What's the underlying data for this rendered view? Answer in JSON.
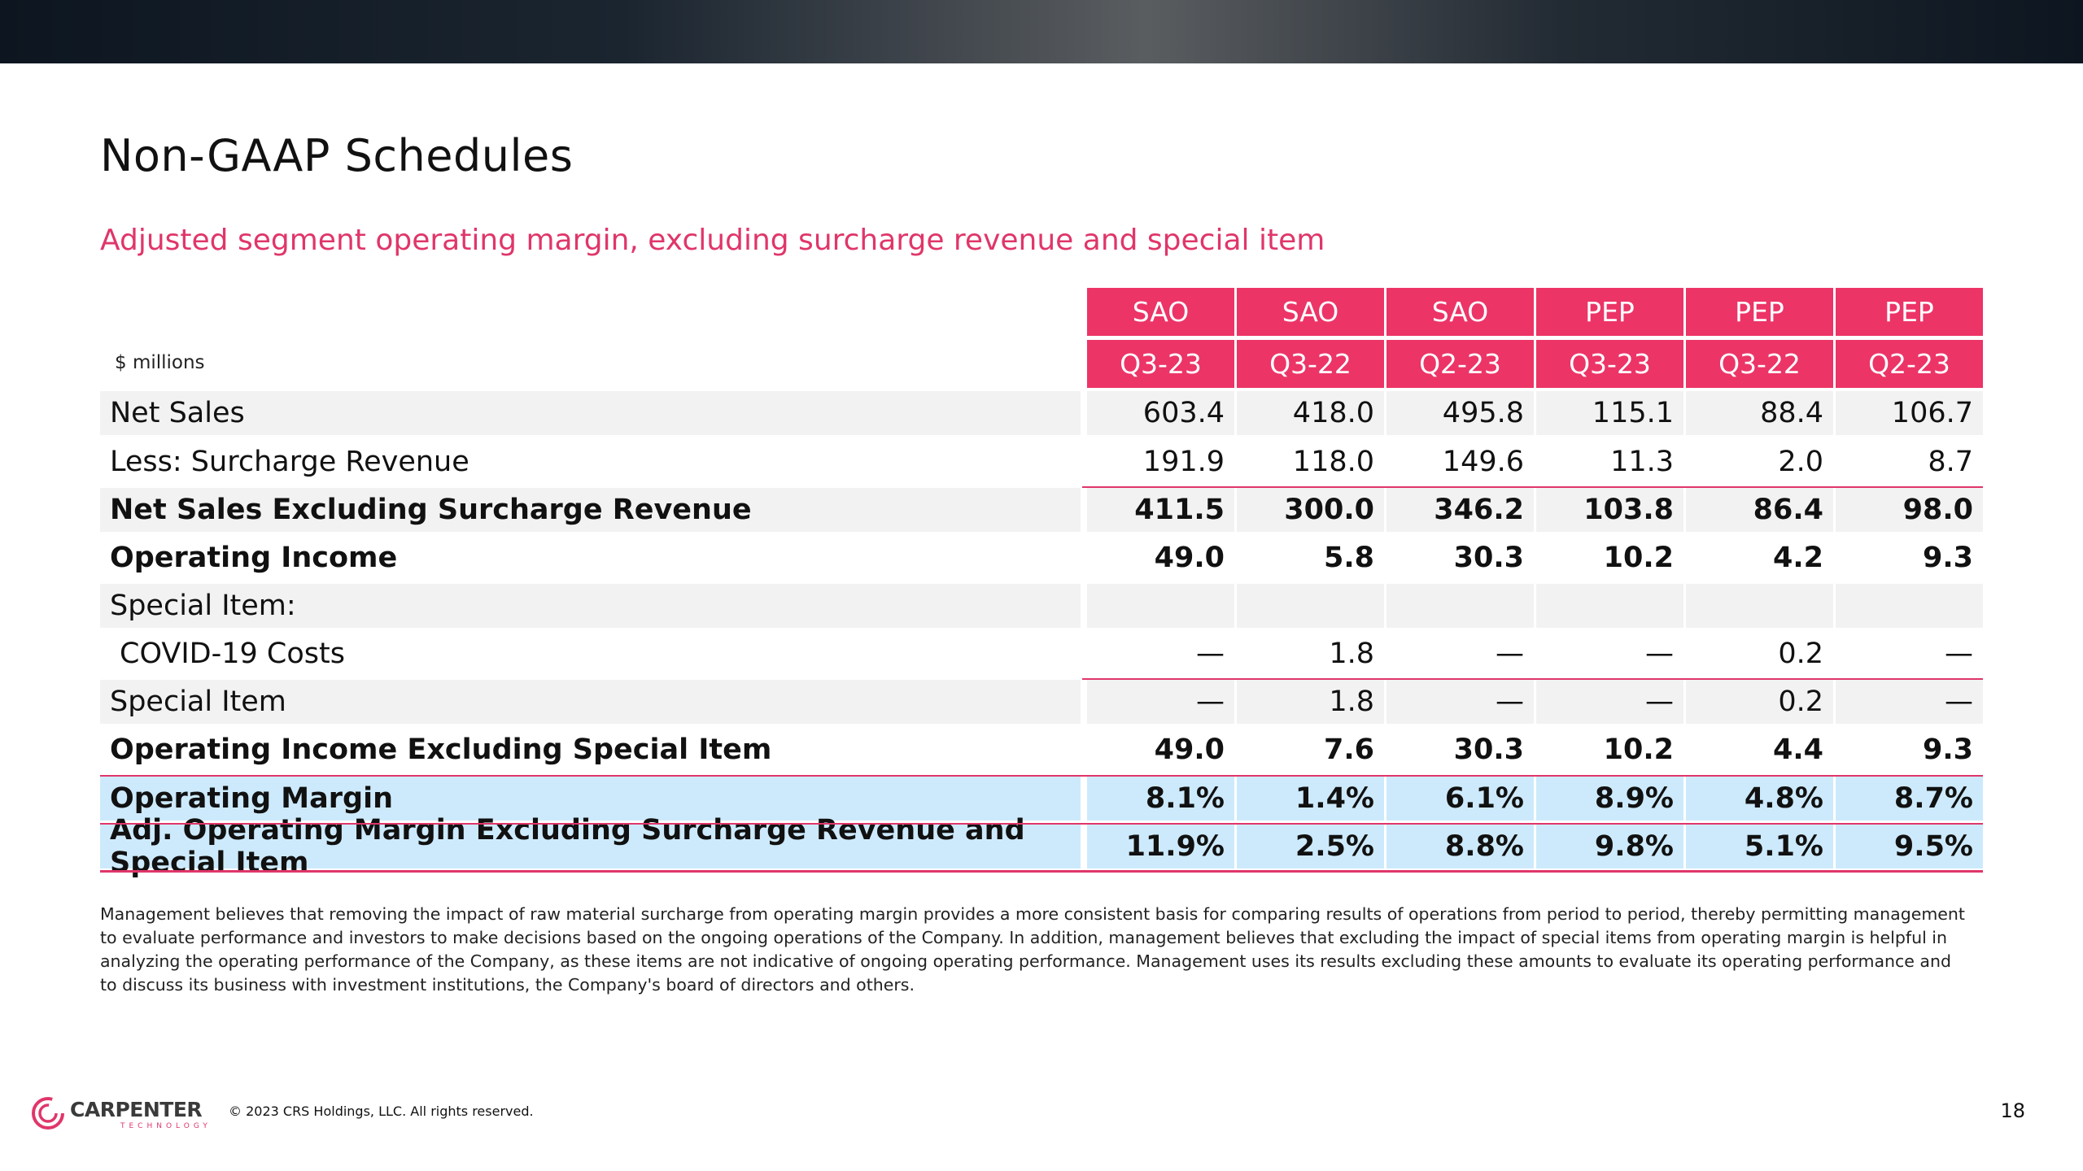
{
  "title": "Non-GAAP Schedules",
  "subtitle": "Adjusted segment operating margin, excluding surcharge revenue and special item",
  "units_label": "$ millions",
  "columns": [
    {
      "segment": "SAO",
      "period": "Q3-23"
    },
    {
      "segment": "SAO",
      "period": "Q3-22"
    },
    {
      "segment": "SAO",
      "period": "Q2-23"
    },
    {
      "segment": "PEP",
      "period": "Q3-23"
    },
    {
      "segment": "PEP",
      "period": "Q3-22"
    },
    {
      "segment": "PEP",
      "period": "Q2-23"
    }
  ],
  "rows": [
    {
      "label": "Net Sales",
      "values": [
        "603.4",
        "418.0",
        "495.8",
        "115.1",
        "88.4",
        "106.7"
      ]
    },
    {
      "label": "Less: Surcharge Revenue",
      "values": [
        "191.9",
        "118.0",
        "149.6",
        "11.3",
        "2.0",
        "8.7"
      ]
    },
    {
      "label": "Net Sales Excluding Surcharge Revenue",
      "values": [
        "411.5",
        "300.0",
        "346.2",
        "103.8",
        "86.4",
        "98.0"
      ]
    },
    {
      "label": "Operating Income",
      "values": [
        "49.0",
        "5.8",
        "30.3",
        "10.2",
        "4.2",
        "9.3"
      ]
    },
    {
      "label": "Special Item:",
      "values": [
        "",
        "",
        "",
        "",
        "",
        ""
      ]
    },
    {
      "label": "COVID-19 Costs",
      "values": [
        "—",
        "1.8",
        "—",
        "—",
        "0.2",
        "—"
      ]
    },
    {
      "label": "Special Item",
      "values": [
        "—",
        "1.8",
        "—",
        "—",
        "0.2",
        "—"
      ]
    },
    {
      "label": "Operating Income Excluding Special Item",
      "values": [
        "49.0",
        "7.6",
        "30.3",
        "10.2",
        "4.4",
        "9.3"
      ]
    },
    {
      "label": "Operating Margin",
      "values": [
        "8.1%",
        "1.4%",
        "6.1%",
        "8.9%",
        "4.8%",
        "8.7%"
      ]
    },
    {
      "label": "Adj. Operating Margin Excluding Surcharge Revenue and Special Item",
      "values": [
        "11.9%",
        "2.5%",
        "8.8%",
        "9.8%",
        "5.1%",
        "9.5%"
      ]
    }
  ],
  "footnote": "Management believes that removing the impact of raw material surcharge from operating margin provides a more consistent basis for comparing results of operations from period to period, thereby permitting management to evaluate performance and investors to make decisions based on the ongoing operations of the Company. In addition, management believes that excluding the impact of special items from operating margin is helpful in analyzing the operating performance of the Company, as these items are not indicative of ongoing operating performance. Management uses its results excluding these amounts to evaluate its operating performance and to discuss its business with investment institutions, the Company's board of directors and others.",
  "logo": {
    "name": "CARPENTER",
    "tagline": "TECHNOLOGY"
  },
  "copyright": "© 2023 CRS Holdings, LLC. All rights reserved.",
  "page_number": "18",
  "colors": {
    "accent": "#ec3467",
    "highlight_row": "#cdeafc",
    "shaded_row": "#f2f2f2"
  }
}
